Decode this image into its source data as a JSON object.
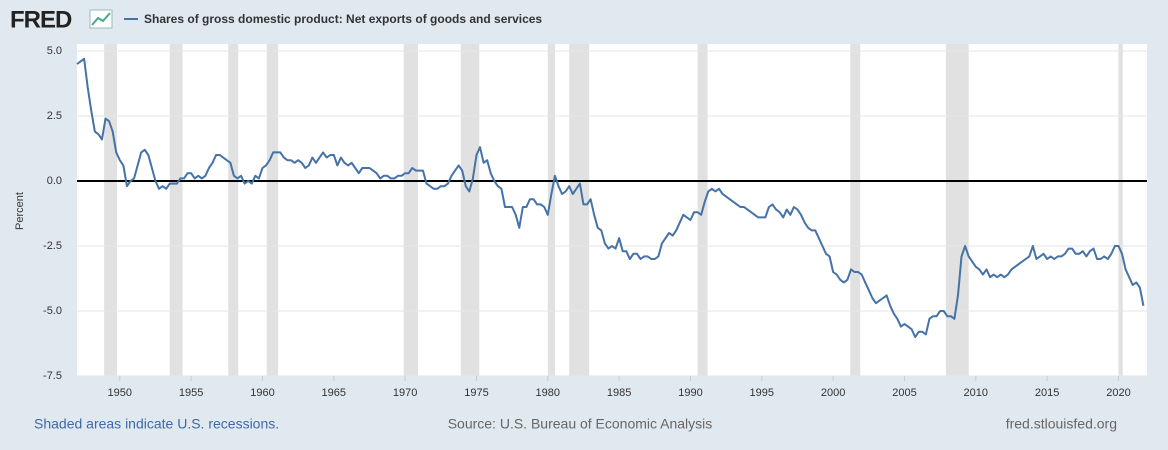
{
  "logo": "FRED",
  "chart_data": {
    "type": "line",
    "y_label": "Percent",
    "series": [
      {
        "name": "Shares of gross domestic product: Net exports of goods and services",
        "color": "#4572a7",
        "values": [
          4.5,
          4.6,
          4.7,
          3.6,
          2.7,
          1.9,
          1.8,
          1.6,
          2.4,
          2.3,
          1.9,
          1.1,
          0.8,
          0.6,
          -0.2,
          0.0,
          0.1,
          0.6,
          1.1,
          1.2,
          1.0,
          0.5,
          0.0,
          -0.3,
          -0.2,
          -0.3,
          -0.1,
          -0.1,
          -0.1,
          0.1,
          0.1,
          0.3,
          0.3,
          0.1,
          0.2,
          0.1,
          0.2,
          0.5,
          0.7,
          1.0,
          1.0,
          0.9,
          0.8,
          0.7,
          0.2,
          0.1,
          0.2,
          -0.1,
          0.0,
          -0.1,
          0.2,
          0.1,
          0.5,
          0.6,
          0.8,
          1.1,
          1.1,
          1.1,
          0.9,
          0.8,
          0.8,
          0.7,
          0.8,
          0.7,
          0.5,
          0.6,
          0.9,
          0.7,
          0.9,
          1.1,
          0.9,
          1.0,
          1.0,
          0.6,
          0.9,
          0.7,
          0.6,
          0.7,
          0.5,
          0.3,
          0.5,
          0.5,
          0.5,
          0.4,
          0.3,
          0.1,
          0.2,
          0.2,
          0.1,
          0.1,
          0.2,
          0.2,
          0.3,
          0.3,
          0.5,
          0.4,
          0.4,
          0.4,
          -0.1,
          -0.2,
          -0.3,
          -0.3,
          -0.2,
          -0.2,
          -0.1,
          0.2,
          0.4,
          0.6,
          0.4,
          -0.2,
          -0.4,
          0.1,
          1.0,
          1.3,
          0.7,
          0.8,
          0.3,
          0.0,
          -0.2,
          -0.3,
          -1.0,
          -1.0,
          -1.0,
          -1.3,
          -1.8,
          -1.0,
          -1.0,
          -0.7,
          -0.7,
          -0.9,
          -0.9,
          -1.0,
          -1.3,
          -0.5,
          0.2,
          -0.2,
          -0.5,
          -0.4,
          -0.2,
          -0.5,
          -0.3,
          -0.1,
          -0.9,
          -0.9,
          -0.7,
          -1.3,
          -1.8,
          -1.9,
          -2.4,
          -2.6,
          -2.5,
          -2.6,
          -2.2,
          -2.7,
          -2.7,
          -3.0,
          -2.8,
          -2.8,
          -3.0,
          -2.9,
          -2.9,
          -3.0,
          -3.0,
          -2.9,
          -2.4,
          -2.2,
          -2.0,
          -2.1,
          -1.9,
          -1.6,
          -1.3,
          -1.4,
          -1.5,
          -1.2,
          -1.2,
          -1.3,
          -0.8,
          -0.4,
          -0.3,
          -0.4,
          -0.3,
          -0.5,
          -0.6,
          -0.7,
          -0.8,
          -0.9,
          -1.0,
          -1.0,
          -1.1,
          -1.2,
          -1.3,
          -1.4,
          -1.4,
          -1.4,
          -1.0,
          -0.9,
          -1.1,
          -1.2,
          -1.4,
          -1.1,
          -1.3,
          -1.0,
          -1.1,
          -1.3,
          -1.6,
          -1.8,
          -1.9,
          -1.9,
          -2.2,
          -2.5,
          -2.8,
          -2.9,
          -3.5,
          -3.6,
          -3.8,
          -3.9,
          -3.8,
          -3.4,
          -3.5,
          -3.5,
          -3.6,
          -3.9,
          -4.2,
          -4.5,
          -4.7,
          -4.6,
          -4.5,
          -4.4,
          -4.8,
          -5.1,
          -5.3,
          -5.6,
          -5.5,
          -5.6,
          -5.7,
          -6.0,
          -5.8,
          -5.8,
          -5.9,
          -5.3,
          -5.2,
          -5.2,
          -5.0,
          -5.0,
          -5.2,
          -5.2,
          -5.3,
          -4.4,
          -2.9,
          -2.5,
          -2.9,
          -3.1,
          -3.3,
          -3.4,
          -3.6,
          -3.4,
          -3.7,
          -3.6,
          -3.7,
          -3.6,
          -3.7,
          -3.6,
          -3.4,
          -3.3,
          -3.2,
          -3.1,
          -3.0,
          -2.9,
          -2.5,
          -3.0,
          -2.9,
          -2.8,
          -3.0,
          -2.9,
          -3.0,
          -2.9,
          -2.9,
          -2.8,
          -2.6,
          -2.6,
          -2.8,
          -2.8,
          -2.7,
          -2.9,
          -2.7,
          -2.6,
          -3.0,
          -3.0,
          -2.9,
          -3.0,
          -2.8,
          -2.5,
          -2.5,
          -2.8,
          -3.4,
          -3.7,
          -4.0,
          -3.9,
          -4.1,
          -4.8
        ]
      }
    ],
    "x": [
      1947,
      1947.25,
      1947.5,
      1947.75,
      1948,
      1948.25,
      1948.5,
      1948.75,
      1949,
      1949.25,
      1949.5,
      1949.75,
      1950,
      1950.25,
      1950.5,
      1950.75,
      1951,
      1951.25,
      1951.5,
      1951.75,
      1952,
      1952.25,
      1952.5,
      1952.75,
      1953,
      1953.25,
      1953.5,
      1953.75,
      1954,
      1954.25,
      1954.5,
      1954.75,
      1955,
      1955.25,
      1955.5,
      1955.75,
      1956,
      1956.25,
      1956.5,
      1956.75,
      1957,
      1957.25,
      1957.5,
      1957.75,
      1958,
      1958.25,
      1958.5,
      1958.75,
      1959,
      1959.25,
      1959.5,
      1959.75,
      1960,
      1960.25,
      1960.5,
      1960.75,
      1961,
      1961.25,
      1961.5,
      1961.75,
      1962,
      1962.25,
      1962.5,
      1962.75,
      1963,
      1963.25,
      1963.5,
      1963.75,
      1964,
      1964.25,
      1964.5,
      1964.75,
      1965,
      1965.25,
      1965.5,
      1965.75,
      1966,
      1966.25,
      1966.5,
      1966.75,
      1967,
      1967.25,
      1967.5,
      1967.75,
      1968,
      1968.25,
      1968.5,
      1968.75,
      1969,
      1969.25,
      1969.5,
      1969.75,
      1970,
      1970.25,
      1970.5,
      1970.75,
      1971,
      1971.25,
      1971.5,
      1971.75,
      1972,
      1972.25,
      1972.5,
      1972.75,
      1973,
      1973.25,
      1973.5,
      1973.75,
      1974,
      1974.25,
      1974.5,
      1974.75,
      1975,
      1975.25,
      1975.5,
      1975.75,
      1976,
      1976.25,
      1976.5,
      1976.75,
      1977,
      1977.25,
      1977.5,
      1977.75,
      1978,
      1978.25,
      1978.5,
      1978.75,
      1979,
      1979.25,
      1979.5,
      1979.75,
      1980,
      1980.25,
      1980.5,
      1980.75,
      1981,
      1981.25,
      1981.5,
      1981.75,
      1982,
      1982.25,
      1982.5,
      1982.75,
      1983,
      1983.25,
      1983.5,
      1983.75,
      1984,
      1984.25,
      1984.5,
      1984.75,
      1985,
      1985.25,
      1985.5,
      1985.75,
      1986,
      1986.25,
      1986.5,
      1986.75,
      1987,
      1987.25,
      1987.5,
      1987.75,
      1988,
      1988.25,
      1988.5,
      1988.75,
      1989,
      1989.25,
      1989.5,
      1989.75,
      1990,
      1990.25,
      1990.5,
      1990.75,
      1991,
      1991.25,
      1991.5,
      1991.75,
      1992,
      1992.25,
      1992.5,
      1992.75,
      1993,
      1993.25,
      1993.5,
      1993.75,
      1994,
      1994.25,
      1994.5,
      1994.75,
      1995,
      1995.25,
      1995.5,
      1995.75,
      1996,
      1996.25,
      1996.5,
      1996.75,
      1997,
      1997.25,
      1997.5,
      1997.75,
      1998,
      1998.25,
      1998.5,
      1998.75,
      1999,
      1999.25,
      1999.5,
      1999.75,
      2000,
      2000.25,
      2000.5,
      2000.75,
      2001,
      2001.25,
      2001.5,
      2001.75,
      2002,
      2002.25,
      2002.5,
      2002.75,
      2003,
      2003.25,
      2003.5,
      2003.75,
      2004,
      2004.25,
      2004.5,
      2004.75,
      2005,
      2005.25,
      2005.5,
      2005.75,
      2006,
      2006.25,
      2006.5,
      2006.75,
      2007,
      2007.25,
      2007.5,
      2007.75,
      2008,
      2008.25,
      2008.5,
      2008.75,
      2009,
      2009.25,
      2009.5,
      2009.75,
      2010,
      2010.25,
      2010.5,
      2010.75,
      2011,
      2011.25,
      2011.5,
      2011.75,
      2012,
      2012.25,
      2012.5,
      2012.75,
      2013,
      2013.25,
      2013.5,
      2013.75,
      2014,
      2014.25,
      2014.5,
      2014.75,
      2015,
      2015.25,
      2015.5,
      2015.75,
      2016,
      2016.25,
      2016.5,
      2016.75,
      2017,
      2017.25,
      2017.5,
      2017.75,
      2018,
      2018.25,
      2018.5,
      2018.75,
      2019,
      2019.25,
      2019.5,
      2019.75,
      2020,
      2020.25,
      2020.5,
      2020.75,
      2021,
      2021.25,
      2021.5,
      2021.75
    ],
    "xlim": [
      1947,
      2022
    ],
    "xticks": [
      1950,
      1955,
      1960,
      1965,
      1970,
      1975,
      1980,
      1985,
      1990,
      1995,
      2000,
      2005,
      2010,
      2015,
      2020
    ],
    "ylim": [
      -7.5,
      5
    ],
    "yticks": [
      {
        "value": 5,
        "label": "5.0"
      },
      2.5,
      {
        "value": 0,
        "label": "0.0"
      },
      -2.5,
      {
        "value": -5,
        "label": "-5.0"
      },
      -7.5
    ],
    "grid": true,
    "recession_color": "#e1e1e1",
    "recessions": [
      [
        1948.9,
        1949.8
      ],
      [
        1953.5,
        1954.4
      ],
      [
        1957.6,
        1958.3
      ],
      [
        1960.3,
        1961.1
      ],
      [
        1969.9,
        1970.9
      ],
      [
        1973.9,
        1975.2
      ],
      [
        1980.0,
        1980.5
      ],
      [
        1981.5,
        1982.9
      ],
      [
        1990.5,
        1991.2
      ],
      [
        2001.2,
        2001.9
      ],
      [
        2007.9,
        2009.5
      ],
      [
        2020.0,
        2020.3
      ]
    ]
  },
  "footer": {
    "left": "Shaded areas indicate U.S. recessions.",
    "center": "Source: U.S. Bureau of Economic Analysis",
    "right": "fred.stlouisfed.org"
  }
}
